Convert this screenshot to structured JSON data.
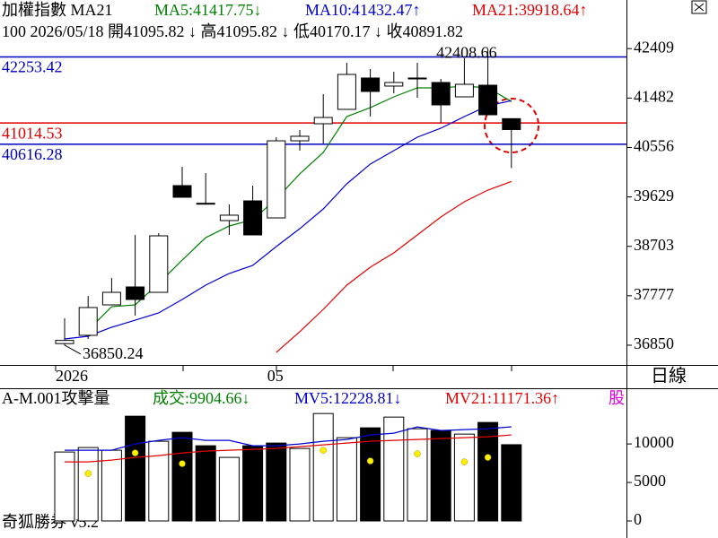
{
  "chart_data": [
    {
      "type": "candlestick",
      "title": "加權指數 MA21",
      "info": "100 2026/05/18 開41095.82 ↓ 高41095.82 ↓ 低40170.17 ↓ 收40891.82",
      "period": "日線",
      "categories": [
        "2026",
        null,
        null,
        null,
        null,
        null,
        null,
        null,
        null,
        "05",
        null,
        null,
        null,
        null,
        null,
        null,
        null,
        null,
        null,
        null
      ],
      "open": [
        36880,
        37035,
        37606,
        37942,
        37841,
        39841,
        39510,
        39186,
        39555,
        39236,
        40681,
        41001,
        41270,
        41858,
        41707,
        41841,
        41774,
        41505,
        41723,
        41095.82
      ],
      "high": [
        37354,
        37774,
        38110,
        38917,
        38950,
        40194,
        40076,
        39488,
        39841,
        40749,
        40883,
        41555,
        42144,
        42026,
        41975,
        42144,
        41841,
        42228,
        42408.66,
        41095.82
      ],
      "low": [
        36850.24,
        36967,
        37606,
        37404,
        37841,
        39623,
        39505,
        38917,
        38917,
        39236,
        40496,
        40631,
        41270,
        41135,
        41572,
        41488,
        41018,
        41505,
        41169,
        40170.17
      ],
      "close": [
        36940,
        37556,
        37841,
        37707,
        38900,
        39623,
        39505,
        39287,
        38917,
        40681,
        40766,
        41118,
        41925,
        41606,
        41774,
        41858,
        41354,
        41740,
        41169,
        40891.82
      ],
      "up_color": "#ffffff",
      "down_color": "#000000",
      "series": [
        {
          "label": "MA5:41417.75↓",
          "color": "#008000",
          "values": [
            null,
            37135,
            37572,
            37606,
            38009,
            38446,
            38866,
            39085,
            39203,
            39589,
            40060,
            40463,
            41135,
            41303,
            41505,
            41673,
            41673,
            41706,
            41673,
            41417.75
          ]
        },
        {
          "label": "MA10:41432.47↑",
          "color": "#0000d0",
          "values": [
            36967,
            37018,
            37186,
            37320,
            37455,
            37707,
            37976,
            38194,
            38346,
            38698,
            39034,
            39404,
            39875,
            40245,
            40497,
            40749,
            40917,
            41135,
            41337,
            41432.47
          ]
        },
        {
          "label": "MA21:39918.64↑",
          "color": "#e00000",
          "values": [
            null,
            null,
            null,
            null,
            null,
            null,
            null,
            null,
            null,
            36715,
            37102,
            37522,
            37976,
            38312,
            38581,
            38917,
            39253,
            39539,
            39757,
            39918.64
          ]
        }
      ],
      "reference_lines": [
        {
          "value": 42253.42,
          "color": "#0000c0"
        },
        {
          "value": 41014.53,
          "color": "#e00000"
        },
        {
          "value": 40616.28,
          "color": "#0000c0"
        }
      ],
      "ylim": [
        36480,
        43320
      ],
      "yticks": [
        42409,
        41482,
        40556,
        39629,
        38703,
        37777,
        36850
      ]
    },
    {
      "type": "bar",
      "title": "A-M.001攻擊量",
      "volume_label": "成交:9904.66↓",
      "volume_label_color": "#008000",
      "extra_label": "股",
      "values": [
        8953,
        9535,
        9186,
        13605,
        10349,
        11512,
        9767,
        8256,
        9767,
        10116,
        9419,
        13953,
        10814,
        12093,
        13488,
        11977,
        11744,
        11279,
        12791,
        9904.66
      ],
      "fills": [
        "#ffffff",
        "#ffffff",
        "#ffffff",
        "#000000",
        "#ffffff",
        "#000000",
        "#000000",
        "#ffffff",
        "#000000",
        "#000000",
        "#ffffff",
        "#ffffff",
        "#ffffff",
        "#000000",
        "#ffffff",
        "#ffffff",
        "#000000",
        "#ffffff",
        "#000000",
        "#000000"
      ],
      "series": [
        {
          "label": "MV5:12228.81↓",
          "color": "#0000d0",
          "values": [
            9186,
            9186,
            9186,
            10000,
            10465,
            10814,
            10465,
            10465,
            9767,
            9767,
            10000,
            10349,
            10581,
            11163,
            11395,
            12209,
            11744,
            11860,
            11977,
            12228.81
          ]
        },
        {
          "label": "MV21:11171.36↑",
          "color": "#e00000",
          "values": [
            7674,
            7674,
            7907,
            8256,
            8488,
            8837,
            9070,
            9186,
            9302,
            9419,
            9651,
            9884,
            10116,
            10349,
            10465,
            10581,
            10698,
            10814,
            10930,
            11171.36
          ]
        }
      ],
      "markers": {
        "color": "#ffee00",
        "values": [
          null,
          6163,
          null,
          8837,
          null,
          7442,
          null,
          null,
          null,
          null,
          null,
          9186,
          null,
          7791,
          null,
          8721,
          null,
          7674,
          8256,
          null
        ]
      },
      "ylim": [
        0,
        17000
      ],
      "yticks": [
        10000,
        5000,
        0
      ]
    }
  ],
  "footer": "奇狐勝券 v5.2"
}
